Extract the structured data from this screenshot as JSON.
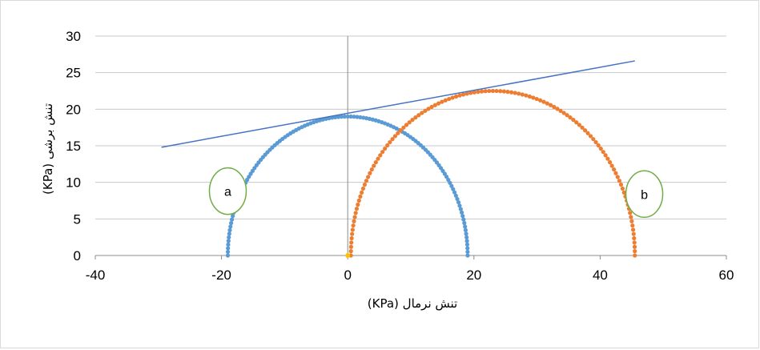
{
  "chart_data": {
    "type": "scatter",
    "title": "",
    "xlabel": "تنش نرمال  (KPa)",
    "ylabel": "تنش برشی  (KPa)",
    "xlim": [
      -40,
      60
    ],
    "ylim": [
      0,
      30
    ],
    "xticks": [
      "-40",
      "-20",
      "0",
      "20",
      "40",
      "60"
    ],
    "yticks": [
      "0",
      "5",
      "10",
      "15",
      "20",
      "25",
      "30"
    ],
    "x_tick_values": [
      -40,
      -20,
      0,
      20,
      40,
      60
    ],
    "y_tick_values": [
      0,
      5,
      10,
      15,
      20,
      25,
      30
    ],
    "grid": "horizontal",
    "legend": "none",
    "series": [
      {
        "shape": "mohr-circle",
        "center": 0,
        "radius": 19,
        "color": "#5b9bd5"
      },
      {
        "shape": "mohr-circle",
        "center": 23,
        "radius": 22.5,
        "color": "#ed7d31"
      },
      {
        "shape": "line",
        "x": [
          -29.5,
          45.5
        ],
        "y": [
          14.8,
          26.6
        ],
        "color": "#4472c4"
      },
      {
        "shape": "point",
        "x": [
          0
        ],
        "y": [
          0
        ],
        "color": "#ffc000"
      }
    ],
    "annotations": [
      {
        "text": "a",
        "x": -19,
        "y": 8.8,
        "color": "#70ad47"
      },
      {
        "text": "b",
        "x": 47,
        "y": 8.4,
        "color": "#70ad47"
      }
    ]
  }
}
